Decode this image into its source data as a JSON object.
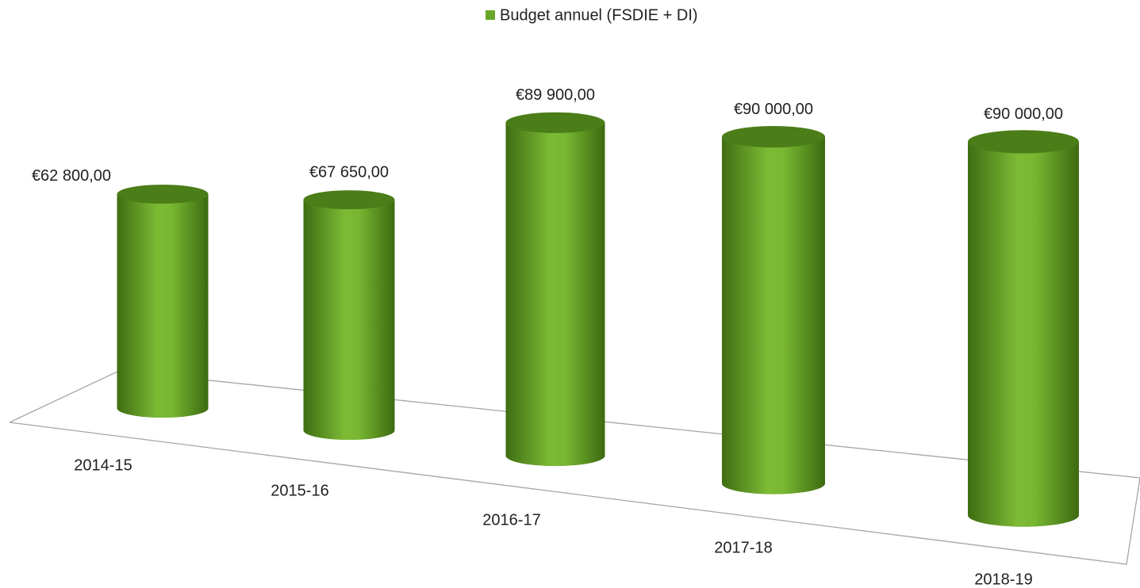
{
  "chart_data": {
    "type": "bar3d",
    "categories": [
      "2014-15",
      "2015-16",
      "2016-17",
      "2017-18",
      "2018-19"
    ],
    "series": [
      {
        "name": "Budget annuel (FSDIE + DI)",
        "color": "#6aa628",
        "values": [
          62800,
          67650,
          89900,
          90000,
          90000
        ],
        "value_labels": [
          "€62 800,00",
          "€67 650,00",
          "€89 900,00",
          "€90 000,00",
          "€90 000,00"
        ]
      }
    ],
    "legend": "top"
  }
}
